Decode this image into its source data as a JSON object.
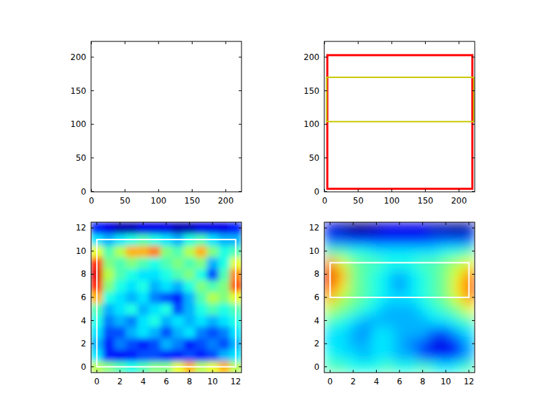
{
  "chart_data": [
    {
      "type": "image",
      "xlim": [
        -0.5,
        223.5
      ],
      "ylim": [
        223.5,
        -0.5
      ],
      "xticks": [
        0,
        50,
        100,
        150,
        200
      ],
      "yticks": [
        0,
        50,
        100,
        150,
        200
      ]
    },
    {
      "type": "image",
      "xlim": [
        -0.5,
        223.5
      ],
      "ylim": [
        223.5,
        -0.5
      ],
      "xticks": [
        0,
        50,
        100,
        150,
        200
      ],
      "yticks": [
        0,
        50,
        100,
        150,
        200
      ],
      "boxes": [
        {
          "x0": 4,
          "y0": 4,
          "x1": 220,
          "y1": 203,
          "color": "#ff0000"
        },
        {
          "x0": 3,
          "y0": 104,
          "x1": 222,
          "y1": 170,
          "color": "#c8c800"
        }
      ]
    },
    {
      "type": "heatmap",
      "xlim": [
        -0.5,
        12.5
      ],
      "ylim": [
        12.5,
        -0.5
      ],
      "xticks": [
        0,
        2,
        4,
        6,
        8,
        10,
        12
      ],
      "yticks": [
        0,
        2,
        4,
        6,
        8,
        10,
        12
      ],
      "color_range": [
        0,
        1
      ],
      "cells": [
        [
          0.55,
          0.5,
          0.45,
          0.4,
          0.45,
          0.5,
          0.5,
          0.6,
          0.7,
          0.55,
          0.6,
          0.7,
          0.55
        ],
        [
          0.35,
          0.15,
          0.12,
          0.15,
          0.2,
          0.2,
          0.15,
          0.15,
          0.2,
          0.15,
          0.2,
          0.3,
          0.35
        ],
        [
          0.3,
          0.15,
          0.25,
          0.2,
          0.15,
          0.2,
          0.3,
          0.25,
          0.15,
          0.2,
          0.25,
          0.2,
          0.3
        ],
        [
          0.35,
          0.2,
          0.2,
          0.3,
          0.35,
          0.3,
          0.2,
          0.3,
          0.35,
          0.25,
          0.2,
          0.25,
          0.35
        ],
        [
          0.4,
          0.25,
          0.3,
          0.25,
          0.35,
          0.4,
          0.3,
          0.35,
          0.3,
          0.35,
          0.3,
          0.35,
          0.4
        ],
        [
          0.45,
          0.3,
          0.35,
          0.4,
          0.3,
          0.35,
          0.4,
          0.2,
          0.3,
          0.4,
          0.45,
          0.4,
          0.45
        ],
        [
          0.7,
          0.4,
          0.35,
          0.3,
          0.35,
          0.25,
          0.2,
          0.15,
          0.3,
          0.45,
          0.55,
          0.5,
          0.6
        ],
        [
          0.85,
          0.5,
          0.4,
          0.35,
          0.4,
          0.3,
          0.35,
          0.3,
          0.4,
          0.5,
          0.45,
          0.5,
          0.8
        ],
        [
          0.9,
          0.55,
          0.45,
          0.4,
          0.35,
          0.35,
          0.4,
          0.45,
          0.5,
          0.4,
          0.2,
          0.45,
          0.75
        ],
        [
          0.85,
          0.5,
          0.45,
          0.5,
          0.45,
          0.4,
          0.45,
          0.5,
          0.45,
          0.5,
          0.3,
          0.4,
          0.6
        ],
        [
          0.6,
          0.45,
          0.55,
          0.7,
          0.7,
          0.75,
          0.5,
          0.45,
          0.55,
          0.7,
          0.5,
          0.4,
          0.45
        ],
        [
          0.35,
          0.3,
          0.35,
          0.4,
          0.45,
          0.4,
          0.35,
          0.3,
          0.4,
          0.45,
          0.35,
          0.3,
          0.3
        ],
        [
          0.15,
          0.1,
          0.05,
          0.05,
          0.1,
          0.1,
          0.1,
          0.05,
          0.05,
          0.1,
          0.1,
          0.1,
          0.15
        ]
      ],
      "boxes": [
        {
          "x0": 0,
          "y0": 0,
          "x1": 12,
          "y1": 11,
          "color": "#ffffff"
        }
      ]
    },
    {
      "type": "heatmap",
      "xlim": [
        -0.5,
        12.5
      ],
      "ylim": [
        12.5,
        -0.5
      ],
      "xticks": [
        0,
        2,
        4,
        6,
        8,
        10,
        12
      ],
      "yticks": [
        0,
        2,
        4,
        6,
        8,
        10,
        12
      ],
      "color_range": [
        0,
        1
      ],
      "cells": [
        [
          0.45,
          0.45,
          0.4,
          0.4,
          0.4,
          0.45,
          0.4,
          0.4,
          0.45,
          0.4,
          0.35,
          0.4,
          0.45
        ],
        [
          0.4,
          0.35,
          0.35,
          0.3,
          0.35,
          0.35,
          0.3,
          0.3,
          0.2,
          0.15,
          0.15,
          0.2,
          0.3
        ],
        [
          0.35,
          0.35,
          0.3,
          0.3,
          0.35,
          0.35,
          0.3,
          0.25,
          0.2,
          0.1,
          0.1,
          0.15,
          0.3
        ],
        [
          0.35,
          0.35,
          0.3,
          0.25,
          0.35,
          0.35,
          0.3,
          0.3,
          0.3,
          0.2,
          0.2,
          0.3,
          0.35
        ],
        [
          0.45,
          0.4,
          0.35,
          0.3,
          0.3,
          0.3,
          0.3,
          0.3,
          0.3,
          0.35,
          0.35,
          0.4,
          0.45
        ],
        [
          0.55,
          0.5,
          0.45,
          0.4,
          0.35,
          0.3,
          0.3,
          0.3,
          0.35,
          0.4,
          0.45,
          0.5,
          0.6
        ],
        [
          0.7,
          0.55,
          0.5,
          0.45,
          0.4,
          0.35,
          0.35,
          0.35,
          0.4,
          0.45,
          0.5,
          0.6,
          0.75
        ],
        [
          0.85,
          0.65,
          0.5,
          0.45,
          0.4,
          0.35,
          0.25,
          0.35,
          0.4,
          0.45,
          0.5,
          0.65,
          0.8
        ],
        [
          0.9,
          0.7,
          0.5,
          0.45,
          0.4,
          0.35,
          0.3,
          0.35,
          0.4,
          0.45,
          0.5,
          0.6,
          0.75
        ],
        [
          0.75,
          0.6,
          0.5,
          0.45,
          0.45,
          0.4,
          0.4,
          0.4,
          0.45,
          0.45,
          0.5,
          0.55,
          0.6
        ],
        [
          0.45,
          0.45,
          0.4,
          0.4,
          0.35,
          0.35,
          0.35,
          0.35,
          0.35,
          0.35,
          0.4,
          0.4,
          0.45
        ],
        [
          0.2,
          0.2,
          0.15,
          0.15,
          0.15,
          0.15,
          0.15,
          0.15,
          0.15,
          0.2,
          0.2,
          0.2,
          0.2
        ],
        [
          0.1,
          0.05,
          0.0,
          0.0,
          0.05,
          0.1,
          0.1,
          0.1,
          0.1,
          0.05,
          0.05,
          0.0,
          0.05
        ]
      ],
      "boxes": [
        {
          "x0": 0,
          "y0": 6,
          "x1": 12,
          "y1": 9,
          "color": "#ffffff"
        }
      ]
    }
  ]
}
